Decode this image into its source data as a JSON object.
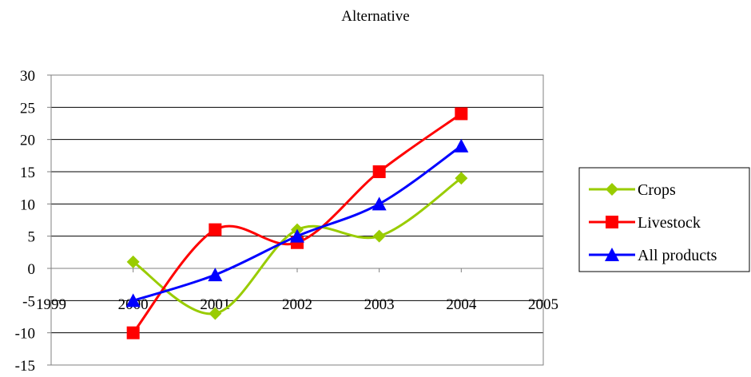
{
  "chart_data": {
    "type": "line",
    "title": "Alternative",
    "xlabel": "",
    "ylabel": "",
    "x_ticks": [
      "1999",
      "2000",
      "2001",
      "2002",
      "2003",
      "2004",
      "2005"
    ],
    "y_ticks": [
      "30",
      "25",
      "20",
      "15",
      "10",
      "5",
      "0",
      "-5",
      "-10",
      "-15"
    ],
    "xlim": [
      1999,
      2005
    ],
    "ylim": [
      -15,
      30
    ],
    "grid": "horizontal",
    "legend_position": "right",
    "series": [
      {
        "name": "Crops",
        "color": "#99cc00",
        "marker": "diamond",
        "x": [
          2000,
          2001,
          2002,
          2003,
          2004
        ],
        "values": [
          1,
          -7,
          6,
          5,
          14
        ]
      },
      {
        "name": "Livestock",
        "color": "#ff0000",
        "marker": "square",
        "x": [
          2000,
          2001,
          2002,
          2003,
          2004
        ],
        "values": [
          -10,
          6,
          4,
          15,
          24
        ]
      },
      {
        "name": "All products",
        "color": "#0000ff",
        "marker": "triangle",
        "x": [
          2000,
          2001,
          2002,
          2003,
          2004
        ],
        "values": [
          -5,
          -1,
          5,
          10,
          19
        ]
      }
    ]
  }
}
